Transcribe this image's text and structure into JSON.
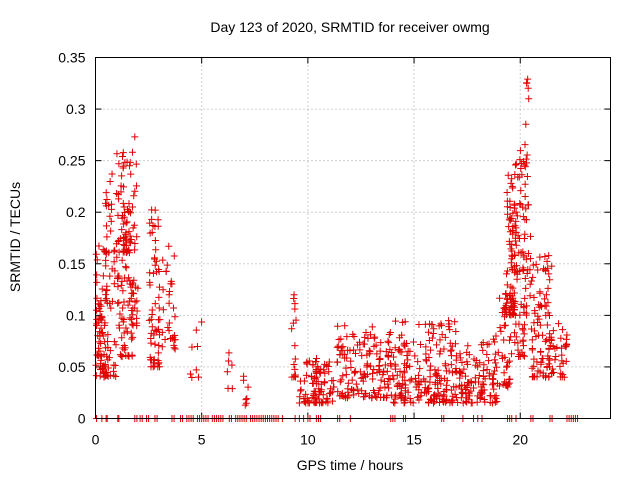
{
  "chart_data": {
    "type": "scatter",
    "title": "Day 123 of 2020, SRMTID for receiver owmg",
    "xlabel": "GPS time / hours",
    "ylabel": "SRMTID / TECUs",
    "xlim": [
      0,
      24.25
    ],
    "ylim": [
      0,
      0.35
    ],
    "x_ticks": [
      0,
      5,
      10,
      15,
      20
    ],
    "y_ticks": [
      0,
      0.05,
      0.1,
      0.15,
      0.2,
      0.25,
      0.3,
      0.35
    ],
    "x_tick_labels": [
      "0",
      "5",
      "10",
      "15",
      "20"
    ],
    "y_tick_labels": [
      "0",
      "0.05",
      "0.1",
      "0.15",
      "0.2",
      "0.25",
      "0.3",
      "0.35"
    ],
    "grid": true,
    "marker": "+",
    "series": [
      {
        "name": "SRMTID",
        "color": "#e00000",
        "clusters": [
          {
            "x_range": [
              0.0,
              0.6
            ],
            "y_range": [
              0.04,
              0.17
            ],
            "count": 60
          },
          {
            "x_range": [
              0.1,
              0.45
            ],
            "y_range": [
              0.06,
              0.12
            ],
            "count": 20
          },
          {
            "x_range": [
              0.45,
              1.0
            ],
            "y_range": [
              0.04,
              0.25
            ],
            "count": 45
          },
          {
            "x_range": [
              1.0,
              1.8
            ],
            "y_range": [
              0.06,
              0.26
            ],
            "count": 90
          },
          {
            "x_range": [
              1.3,
              1.6
            ],
            "y_range": [
              0.16,
              0.21
            ],
            "count": 25
          },
          {
            "x_range": [
              1.6,
              2.0
            ],
            "y_range": [
              0.09,
              0.27
            ],
            "count": 30
          },
          {
            "x_range": [
              2.5,
              3.0
            ],
            "y_range": [
              0.05,
              0.21
            ],
            "count": 55
          },
          {
            "x_range": [
              3.0,
              3.8
            ],
            "y_range": [
              0.05,
              0.16
            ],
            "count": 35
          },
          {
            "x_range": [
              4.4,
              5.0
            ],
            "y_range": [
              0.03,
              0.1
            ],
            "count": 8
          },
          {
            "x_range": [
              6.0,
              6.6
            ],
            "y_range": [
              0.025,
              0.07
            ],
            "count": 6
          },
          {
            "x_range": [
              6.9,
              7.2
            ],
            "y_range": [
              0.012,
              0.055
            ],
            "count": 6
          },
          {
            "x_range": [
              9.2,
              9.5
            ],
            "y_range": [
              0.04,
              0.12
            ],
            "count": 15
          },
          {
            "x_range": [
              9.6,
              11.2
            ],
            "y_range": [
              0.015,
              0.06
            ],
            "count": 90
          },
          {
            "x_range": [
              11.2,
              14.0
            ],
            "y_range": [
              0.02,
              0.09
            ],
            "count": 150
          },
          {
            "x_range": [
              14.0,
              17.0
            ],
            "y_range": [
              0.015,
              0.095
            ],
            "count": 200
          },
          {
            "x_range": [
              17.0,
              19.0
            ],
            "y_range": [
              0.015,
              0.08
            ],
            "count": 110
          },
          {
            "x_range": [
              19.0,
              19.6
            ],
            "y_range": [
              0.03,
              0.12
            ],
            "count": 40
          },
          {
            "x_range": [
              19.3,
              19.9
            ],
            "y_range": [
              0.1,
              0.24
            ],
            "count": 80
          },
          {
            "x_range": [
              19.7,
              20.3
            ],
            "y_range": [
              0.06,
              0.28
            ],
            "count": 70
          },
          {
            "x_range": [
              20.0,
              20.5
            ],
            "y_range": [
              0.1,
              0.28
            ],
            "count": 25
          },
          {
            "x_range": [
              20.2,
              20.4
            ],
            "y_range": [
              0.28,
              0.33
            ],
            "count": 3
          },
          {
            "x_range": [
              20.5,
              21.5
            ],
            "y_range": [
              0.04,
              0.16
            ],
            "count": 90
          },
          {
            "x_range": [
              21.4,
              22.2
            ],
            "y_range": [
              0.04,
              0.1
            ],
            "count": 30
          }
        ],
        "notable_points": [
          [
            20.35,
            0.329
          ],
          [
            20.3,
            0.325
          ],
          [
            20.4,
            0.31
          ],
          [
            1.85,
            0.273
          ],
          [
            3.45,
            0.167
          ],
          [
            7.05,
            0.013
          ],
          [
            9.35,
            0.12
          ]
        ],
        "zero_points_x": [
          0.05,
          0.3,
          0.5,
          0.55,
          1.05,
          1.1,
          1.85,
          1.95,
          2.1,
          2.2,
          2.4,
          2.5,
          2.8,
          2.9,
          3.6,
          3.7,
          4.0,
          4.1,
          4.3,
          4.4,
          4.5,
          4.6,
          4.8,
          4.9,
          5.0,
          5.1,
          5.2,
          5.3,
          5.5,
          5.6,
          5.7,
          5.8,
          5.9,
          6.0,
          6.3,
          6.4,
          6.6,
          6.7,
          6.8,
          6.9,
          7.0,
          7.1,
          7.3,
          7.4,
          7.5,
          7.6,
          7.7,
          7.8,
          7.9,
          8.0,
          8.1,
          8.2,
          8.3,
          8.4,
          8.5,
          8.6,
          8.8,
          9.4,
          9.6,
          9.8,
          10.0,
          10.1,
          10.4,
          10.5,
          10.6,
          11.4,
          11.5,
          12.0,
          13.9,
          14.0,
          14.1,
          14.5,
          14.6,
          16.3,
          16.4,
          17.3,
          17.8,
          18.0,
          18.2,
          19.4,
          19.5,
          19.6,
          19.8,
          20.5,
          20.6,
          21.4,
          21.5,
          22.2,
          22.3,
          22.4,
          22.5,
          22.6,
          22.7
        ]
      }
    ]
  }
}
